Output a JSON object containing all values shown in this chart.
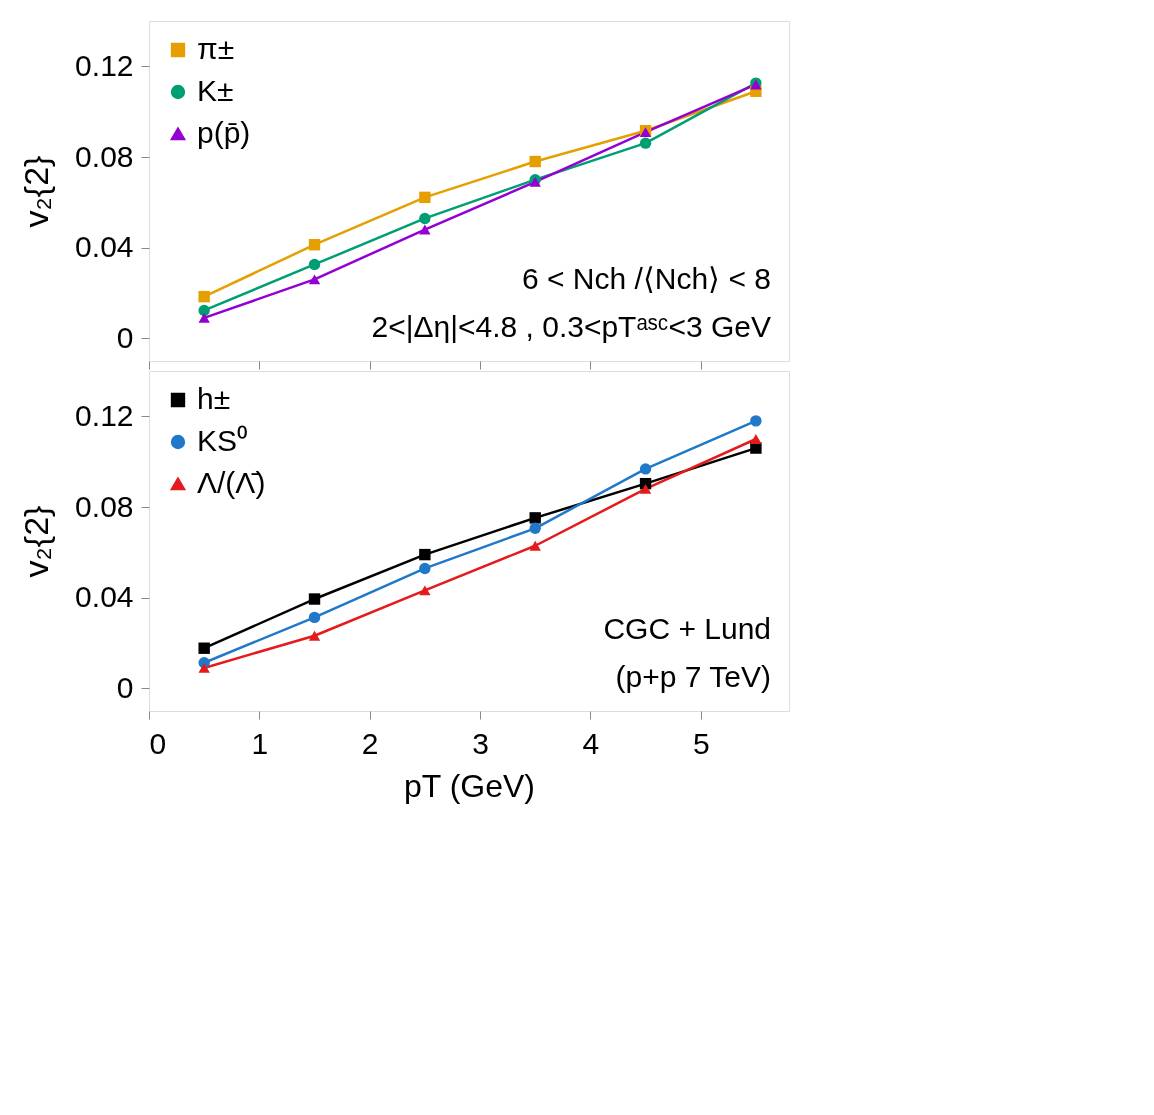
{
  "chart_data": [
    {
      "type": "line",
      "ylabel": "v₂{2}",
      "x": [
        0.5,
        1.5,
        2.5,
        3.5,
        4.5,
        5.5
      ],
      "xlim": [
        0,
        5.8
      ],
      "xticks": [
        0,
        1,
        2,
        3,
        4,
        5
      ],
      "ylim": [
        -0.01,
        0.14
      ],
      "yticks": [
        0,
        0.04,
        0.08,
        0.12
      ],
      "tick_labels": "y",
      "legend": "top left",
      "grid": false,
      "series": [
        {
          "name": "π±",
          "color": "#e69f00",
          "marker": "square",
          "values": [
            0.0184,
            0.0413,
            0.0622,
            0.078,
            0.0916,
            0.109
          ]
        },
        {
          "name": "K±",
          "color": "#009e73",
          "marker": "circle",
          "values": [
            0.0123,
            0.0326,
            0.0529,
            0.07,
            0.0861,
            0.1126
          ]
        },
        {
          "name": "p(p̄)",
          "color": "#9400d3",
          "marker": "triangle",
          "values": [
            0.009,
            0.026,
            0.048,
            0.069,
            0.091,
            0.112
          ]
        }
      ],
      "annotations": [
        "6 < Nch /⟨Nch⟩ < 8",
        "2<|Δη|<4.8 , 0.3<pTᵃˢᶜ<3 GeV"
      ]
    },
    {
      "type": "line",
      "ylabel": "v₂{2}",
      "xlabel": "pT (GeV)",
      "x": [
        0.5,
        1.5,
        2.5,
        3.5,
        4.5,
        5.5
      ],
      "xlim": [
        0,
        5.8
      ],
      "xticks": [
        0,
        1,
        2,
        3,
        4,
        5
      ],
      "ylim": [
        -0.01,
        0.14
      ],
      "yticks": [
        0,
        0.04,
        0.08,
        0.12
      ],
      "legend": "top left",
      "grid": false,
      "series": [
        {
          "name": "h±",
          "color": "#000000",
          "marker": "square",
          "values": [
            0.0177,
            0.0394,
            0.059,
            0.0752,
            0.0903,
            0.106
          ]
        },
        {
          "name": "KS⁰",
          "color": "#1f78c8",
          "marker": "circle",
          "values": [
            0.0113,
            0.0313,
            0.0529,
            0.0706,
            0.0968,
            0.118
          ]
        },
        {
          "name": "Λ/(Λ̄)",
          "color": "#e41a1c",
          "marker": "triangle",
          "values": [
            0.009,
            0.0232,
            0.0432,
            0.0629,
            0.088,
            0.11
          ]
        }
      ],
      "annotations": [
        "CGC + Lund",
        "(p+p 7 TeV)"
      ]
    }
  ]
}
